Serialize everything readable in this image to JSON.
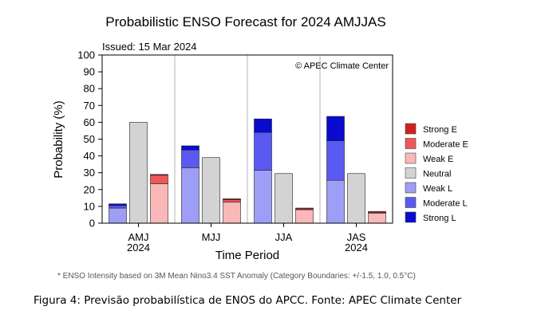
{
  "chart_data": {
    "type": "bar",
    "title": "Probabilistic ENSO Forecast for 2024 AMJJAS",
    "issued": "Issued: 15 Mar 2024",
    "copyright": "© APEC Climate Center",
    "ylabel": "Probability (%)",
    "xlabel": "Time Period",
    "ylim": [
      0,
      100
    ],
    "yticks": [
      0,
      10,
      20,
      30,
      40,
      50,
      60,
      70,
      80,
      90,
      100
    ],
    "categories": [
      {
        "label": "AMJ",
        "sublabel": "2024"
      },
      {
        "label": "MJJ",
        "sublabel": ""
      },
      {
        "label": "JJA",
        "sublabel": ""
      },
      {
        "label": "JAS",
        "sublabel": "2024"
      }
    ],
    "series": [
      {
        "name": "Strong E",
        "color": "#d21f1f"
      },
      {
        "name": "Moderate E",
        "color": "#f05858"
      },
      {
        "name": "Weak E",
        "color": "#fbb8b8"
      },
      {
        "name": "Neutral",
        "color": "#d3d3d3"
      },
      {
        "name": "Weak L",
        "color": "#9e9ef7"
      },
      {
        "name": "Moderate L",
        "color": "#5a5af2"
      },
      {
        "name": "Strong L",
        "color": "#0a0ad0"
      }
    ],
    "data": {
      "la_nina": {
        "weak": [
          9,
          33,
          31.5,
          25.5
        ],
        "moderate": [
          1.5,
          10.5,
          22.5,
          23.5
        ],
        "strong": [
          1,
          2.5,
          8,
          14.5
        ]
      },
      "neutral": [
        60,
        39,
        29.5,
        29.5
      ],
      "el_nino": {
        "weak": [
          23.5,
          12.5,
          8,
          6
        ],
        "moderate": [
          5,
          1.5,
          0.5,
          0.5
        ],
        "strong": [
          0.5,
          0.5,
          0.5,
          0.5
        ]
      }
    },
    "grid": "vertical separators between periods",
    "legend_position": "right",
    "footnote": "* ENSO Intensity based on 3M Mean Nino3.4 SST Anomaly (Category Boundaries: +/-1.5, 1.0, 0.5°C)"
  },
  "caption": "Figura 4: Previsão probabilística de ENOS do APCC. Fonte: APEC Climate Center"
}
